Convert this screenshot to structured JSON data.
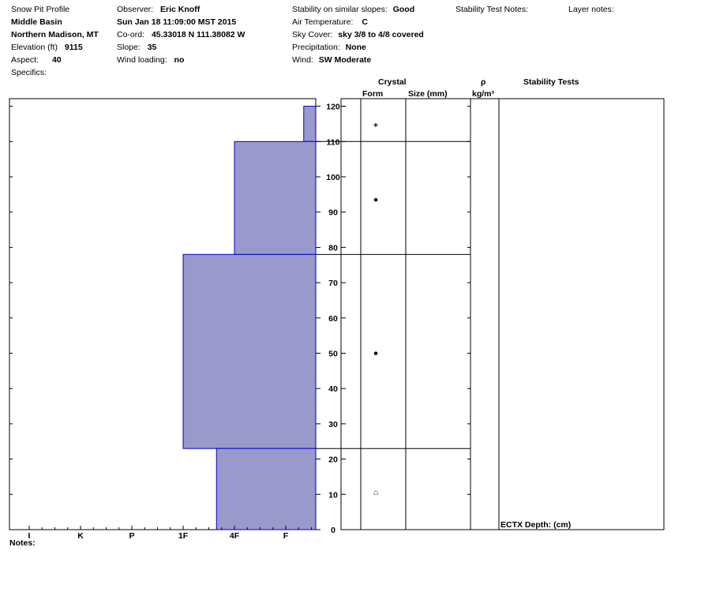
{
  "header": {
    "title": "Snow Pit Profile",
    "location": "Middle Basin",
    "region": "Northern Madison, MT",
    "elevation_label": "Elevation (ft)",
    "elevation_value": "9115",
    "aspect_label": "Aspect:",
    "aspect_value": "40",
    "specifics_label": "Specifics:",
    "observer_label": "Observer:",
    "observer_value": "Eric Knoff",
    "datetime": "Sun Jan 18 11:09:00 MST 2015",
    "coord_label": "Co-ord:",
    "coord_value": "45.33018 N 111.38082 W",
    "slope_label": "Slope:",
    "slope_value": "35",
    "wind_loading_label": "Wind loading:",
    "wind_loading_value": "no",
    "stability_label": "Stability on similar slopes:",
    "stability_value": "Good",
    "air_temp_label": "Air Temperature:",
    "air_temp_value": "C",
    "sky_cover_label": "Sky Cover:",
    "sky_cover_value": "sky 3/8 to 4/8 covered",
    "precip_label": "Precipitation:",
    "precip_value": "None",
    "wind_label": "Wind:",
    "wind_value": "SW Moderate",
    "stability_test_notes_label": "Stability Test Notes:",
    "layer_notes_label": "Layer notes:"
  },
  "columns": {
    "crystal": "Crystal",
    "form": "Form",
    "size": "Size (mm)",
    "rho": "ρ",
    "density_unit": "kg/m³",
    "stability_tests": "Stability Tests"
  },
  "stability_test_result": "ECTX  Depth: (cm)",
  "notes_label": "Notes:",
  "colors": {
    "layer_fill": "#9999cc",
    "layer_edge": "#0000cc"
  },
  "chart_data": {
    "type": "bar",
    "title": "",
    "xlabel": "",
    "ylabel": "",
    "hardness_scale": [
      "I",
      "K",
      "P",
      "1F",
      "4F",
      "F"
    ],
    "ylim": [
      0,
      122
    ],
    "y_ticks": [
      0,
      10,
      20,
      30,
      40,
      50,
      60,
      70,
      80,
      90,
      100,
      110,
      120
    ],
    "layers": [
      {
        "bottom": 110,
        "top": 120,
        "hardness": "F+",
        "grain": "+"
      },
      {
        "bottom": 78,
        "top": 110,
        "hardness": "4F",
        "grain": "●"
      },
      {
        "bottom": 23,
        "top": 78,
        "hardness": "1F",
        "grain": "●"
      },
      {
        "bottom": 0,
        "top": 23,
        "hardness": "4F-",
        "grain": "⌂"
      }
    ],
    "hardness_index": {
      "F+": 5.35,
      "4F": 4.0,
      "1F": 3.0,
      "4F-": 3.65
    },
    "grid": false
  }
}
